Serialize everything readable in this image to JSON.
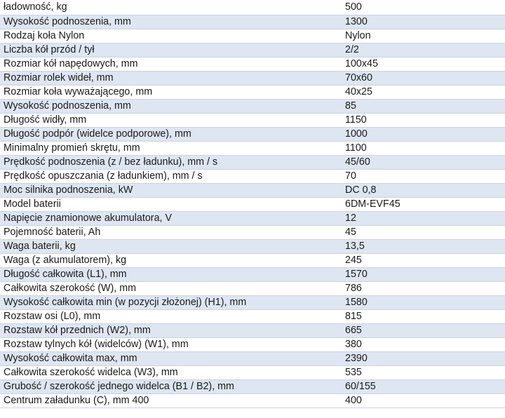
{
  "spec_table": {
    "rows": [
      {
        "param": "ładowność, kg",
        "value": "500"
      },
      {
        "param": "Wysokość podnoszenia, mm",
        "value": "1300"
      },
      {
        "param": "Rodzaj koła Nylon",
        "value": "Nylon"
      },
      {
        "param": "Liczba kół przód / tył",
        "value": "2/2"
      },
      {
        "param": "Rozmiar kół napędowych, mm",
        "value": "100x45"
      },
      {
        "param": "Rozmiar rolek wideł, mm",
        "value": "70x60"
      },
      {
        "param": "Rozmiar koła wyważającego, mm",
        "value": "40x25"
      },
      {
        "param": "Wysokość podnoszenia, mm",
        "value": "85"
      },
      {
        "param": "Długość widły, mm",
        "value": "1150"
      },
      {
        "param": "Długość podpór (widelce podporowe), mm",
        "value": "1000"
      },
      {
        "param": "Minimalny promień skrętu, mm",
        "value": "1100"
      },
      {
        "param": "Prędkość podnoszenia (z / bez ładunku), mm / s",
        "value": "45/60"
      },
      {
        "param": "Prędkość opuszczania (z ładunkiem), mm / s",
        "value": "70"
      },
      {
        "param": "Moc silnika podnoszenia, kW",
        "value": "DC 0,8"
      },
      {
        "param": "Model baterii",
        "value": "6DM-EVF45"
      },
      {
        "param": "Napięcie znamionowe akumulatora, V",
        "value": "12"
      },
      {
        "param": "Pojemność baterii, Ah",
        "value": "45"
      },
      {
        "param": "Waga baterii, kg",
        "value": "13,5"
      },
      {
        "param": "Waga (z akumulatorem), kg",
        "value": "245"
      },
      {
        "param": "Długość całkowita (L1), mm",
        "value": "1570"
      },
      {
        "param": "Całkowita szerokość (W), mm",
        "value": "786"
      },
      {
        "param": "Wysokość całkowita min (w pozycji złożonej) (H1), mm",
        "value": "1580"
      },
      {
        "param": "Rozstaw osi (L0), mm",
        "value": "815"
      },
      {
        "param": "Rozstaw kół przednich (W2), mm",
        "value": "665"
      },
      {
        "param": "Rozstaw tylnych kół (widelców) (W1), mm",
        "value": "380"
      },
      {
        "param": "Wysokość całkowita max, mm",
        "value": "2390"
      },
      {
        "param": "Całkowita szerokość widelca (W3), mm",
        "value": "535"
      },
      {
        "param": "Grubość / szerokość jednego widelca (B1 / B2), mm",
        "value": "60/155"
      },
      {
        "param": "Centrum załadunku (C), mm 400",
        "value": "400"
      }
    ]
  }
}
